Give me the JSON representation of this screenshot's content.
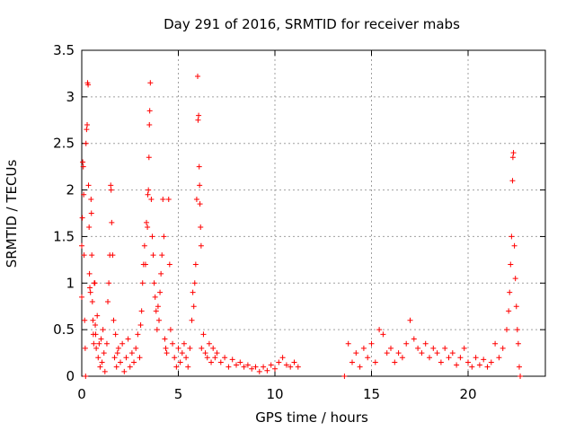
{
  "chart_data": {
    "type": "scatter",
    "title": "Day 291 of 2016, SRMTID for receiver mabs",
    "xlabel": "GPS time / hours",
    "ylabel": "SRMTID / TECUs",
    "xlim": [
      0,
      24
    ],
    "ylim": [
      0,
      3.5
    ],
    "xticks": [
      0,
      5,
      10,
      15,
      20
    ],
    "xtick_labels": [
      "0",
      "5",
      "10",
      "15",
      "20"
    ],
    "yticks": [
      0,
      0.5,
      1,
      1.5,
      2,
      2.5,
      3,
      3.5
    ],
    "ytick_labels": [
      "0",
      "0.5",
      "1",
      "1.5",
      "2",
      "2.5",
      "3",
      "3.5"
    ],
    "grid": true,
    "marker": "+",
    "color": "#ff0000",
    "series": [
      {
        "name": "SRMTID",
        "points": [
          [
            0.0,
            0.85
          ],
          [
            0.0,
            1.4
          ],
          [
            0.03,
            1.7
          ],
          [
            0.05,
            2.3
          ],
          [
            0.08,
            2.25
          ],
          [
            0.1,
            1.95
          ],
          [
            0.12,
            1.3
          ],
          [
            0.15,
            0.6
          ],
          [
            0.18,
            0.3
          ],
          [
            0.2,
            0.0
          ],
          [
            0.22,
            2.5
          ],
          [
            0.25,
            2.65
          ],
          [
            0.28,
            2.7
          ],
          [
            0.3,
            3.15
          ],
          [
            0.33,
            3.13
          ],
          [
            0.35,
            2.05
          ],
          [
            0.38,
            1.6
          ],
          [
            0.4,
            1.1
          ],
          [
            0.42,
            0.95
          ],
          [
            0.45,
            0.9
          ],
          [
            0.48,
            1.9
          ],
          [
            0.5,
            1.75
          ],
          [
            0.52,
            1.3
          ],
          [
            0.55,
            0.8
          ],
          [
            0.58,
            0.6
          ],
          [
            0.6,
            0.45
          ],
          [
            0.62,
            0.35
          ],
          [
            0.65,
            1.0
          ],
          [
            0.68,
            1.0
          ],
          [
            0.7,
            0.55
          ],
          [
            0.72,
            0.45
          ],
          [
            0.75,
            0.3
          ],
          [
            0.8,
            0.65
          ],
          [
            0.85,
            0.2
          ],
          [
            0.9,
            0.35
          ],
          [
            0.95,
            0.1
          ],
          [
            1.0,
            0.4
          ],
          [
            1.05,
            0.15
          ],
          [
            1.1,
            0.5
          ],
          [
            1.15,
            0.25
          ],
          [
            1.2,
            0.05
          ],
          [
            1.3,
            0.35
          ],
          [
            1.35,
            0.8
          ],
          [
            1.4,
            1.0
          ],
          [
            1.45,
            1.3
          ],
          [
            1.5,
            2.05
          ],
          [
            1.52,
            2.0
          ],
          [
            1.55,
            1.65
          ],
          [
            1.6,
            1.3
          ],
          [
            1.65,
            0.6
          ],
          [
            1.7,
            0.2
          ],
          [
            1.75,
            0.45
          ],
          [
            1.8,
            0.1
          ],
          [
            1.85,
            0.25
          ],
          [
            1.9,
            0.3
          ],
          [
            2.0,
            0.15
          ],
          [
            2.1,
            0.35
          ],
          [
            2.2,
            0.05
          ],
          [
            2.3,
            0.2
          ],
          [
            2.4,
            0.4
          ],
          [
            2.5,
            0.1
          ],
          [
            2.6,
            0.25
          ],
          [
            2.7,
            0.15
          ],
          [
            2.8,
            0.3
          ],
          [
            2.9,
            0.45
          ],
          [
            3.0,
            0.2
          ],
          [
            3.05,
            0.55
          ],
          [
            3.1,
            0.7
          ],
          [
            3.15,
            1.0
          ],
          [
            3.2,
            1.2
          ],
          [
            3.25,
            1.4
          ],
          [
            3.3,
            1.2
          ],
          [
            3.35,
            1.65
          ],
          [
            3.4,
            1.6
          ],
          [
            3.42,
            1.95
          ],
          [
            3.45,
            2.0
          ],
          [
            3.48,
            2.35
          ],
          [
            3.5,
            2.7
          ],
          [
            3.52,
            2.85
          ],
          [
            3.55,
            3.15
          ],
          [
            3.6,
            1.9
          ],
          [
            3.65,
            1.5
          ],
          [
            3.7,
            1.3
          ],
          [
            3.75,
            1.0
          ],
          [
            3.8,
            0.85
          ],
          [
            3.85,
            0.7
          ],
          [
            3.9,
            0.5
          ],
          [
            3.95,
            0.75
          ],
          [
            4.0,
            0.6
          ],
          [
            4.05,
            0.9
          ],
          [
            4.1,
            1.1
          ],
          [
            4.15,
            1.3
          ],
          [
            4.2,
            1.9
          ],
          [
            4.25,
            1.5
          ],
          [
            4.3,
            0.4
          ],
          [
            4.35,
            0.3
          ],
          [
            4.4,
            0.25
          ],
          [
            4.5,
            1.9
          ],
          [
            4.55,
            1.2
          ],
          [
            4.6,
            0.5
          ],
          [
            4.7,
            0.35
          ],
          [
            4.8,
            0.2
          ],
          [
            4.9,
            0.1
          ],
          [
            5.0,
            0.3
          ],
          [
            5.1,
            0.15
          ],
          [
            5.2,
            0.25
          ],
          [
            5.3,
            0.35
          ],
          [
            5.4,
            0.2
          ],
          [
            5.5,
            0.1
          ],
          [
            5.6,
            0.3
          ],
          [
            5.7,
            0.6
          ],
          [
            5.75,
            0.9
          ],
          [
            5.8,
            0.75
          ],
          [
            5.85,
            1.0
          ],
          [
            5.9,
            1.2
          ],
          [
            5.95,
            1.9
          ],
          [
            6.0,
            3.22
          ],
          [
            6.02,
            2.75
          ],
          [
            6.05,
            2.8
          ],
          [
            6.08,
            2.25
          ],
          [
            6.1,
            2.05
          ],
          [
            6.12,
            1.85
          ],
          [
            6.15,
            1.6
          ],
          [
            6.18,
            1.4
          ],
          [
            6.2,
            0.3
          ],
          [
            6.3,
            0.45
          ],
          [
            6.4,
            0.25
          ],
          [
            6.5,
            0.2
          ],
          [
            6.6,
            0.35
          ],
          [
            6.7,
            0.15
          ],
          [
            6.8,
            0.3
          ],
          [
            6.9,
            0.2
          ],
          [
            7.0,
            0.25
          ],
          [
            7.2,
            0.15
          ],
          [
            7.4,
            0.2
          ],
          [
            7.6,
            0.1
          ],
          [
            7.8,
            0.18
          ],
          [
            8.0,
            0.12
          ],
          [
            8.2,
            0.15
          ],
          [
            8.4,
            0.1
          ],
          [
            8.6,
            0.12
          ],
          [
            8.8,
            0.08
          ],
          [
            9.0,
            0.1
          ],
          [
            9.2,
            0.05
          ],
          [
            9.4,
            0.1
          ],
          [
            9.6,
            0.06
          ],
          [
            9.8,
            0.12
          ],
          [
            10.0,
            0.08
          ],
          [
            10.2,
            0.15
          ],
          [
            10.4,
            0.2
          ],
          [
            10.6,
            0.12
          ],
          [
            10.8,
            0.1
          ],
          [
            11.0,
            0.15
          ],
          [
            11.2,
            0.1
          ],
          [
            13.6,
            0.0
          ],
          [
            13.8,
            0.35
          ],
          [
            14.0,
            0.15
          ],
          [
            14.2,
            0.25
          ],
          [
            14.4,
            0.1
          ],
          [
            14.6,
            0.3
          ],
          [
            14.8,
            0.2
          ],
          [
            15.0,
            0.35
          ],
          [
            15.2,
            0.15
          ],
          [
            15.4,
            0.5
          ],
          [
            15.6,
            0.45
          ],
          [
            15.8,
            0.25
          ],
          [
            16.0,
            0.3
          ],
          [
            16.2,
            0.15
          ],
          [
            16.4,
            0.25
          ],
          [
            16.6,
            0.2
          ],
          [
            16.8,
            0.35
          ],
          [
            17.0,
            0.6
          ],
          [
            17.2,
            0.4
          ],
          [
            17.4,
            0.3
          ],
          [
            17.6,
            0.25
          ],
          [
            17.8,
            0.35
          ],
          [
            18.0,
            0.2
          ],
          [
            18.2,
            0.3
          ],
          [
            18.4,
            0.25
          ],
          [
            18.6,
            0.15
          ],
          [
            18.8,
            0.3
          ],
          [
            19.0,
            0.2
          ],
          [
            19.2,
            0.25
          ],
          [
            19.4,
            0.12
          ],
          [
            19.6,
            0.2
          ],
          [
            19.8,
            0.3
          ],
          [
            20.0,
            0.15
          ],
          [
            20.2,
            0.1
          ],
          [
            20.4,
            0.2
          ],
          [
            20.6,
            0.12
          ],
          [
            20.8,
            0.18
          ],
          [
            21.0,
            0.1
          ],
          [
            21.2,
            0.15
          ],
          [
            21.4,
            0.35
          ],
          [
            21.6,
            0.2
          ],
          [
            21.8,
            0.3
          ],
          [
            22.0,
            0.5
          ],
          [
            22.1,
            0.7
          ],
          [
            22.15,
            0.9
          ],
          [
            22.2,
            1.2
          ],
          [
            22.25,
            1.5
          ],
          [
            22.3,
            2.1
          ],
          [
            22.32,
            2.35
          ],
          [
            22.35,
            2.4
          ],
          [
            22.4,
            1.4
          ],
          [
            22.45,
            1.05
          ],
          [
            22.5,
            0.75
          ],
          [
            22.55,
            0.5
          ],
          [
            22.6,
            0.35
          ],
          [
            22.65,
            0.1
          ],
          [
            22.7,
            0.0
          ]
        ]
      }
    ]
  }
}
